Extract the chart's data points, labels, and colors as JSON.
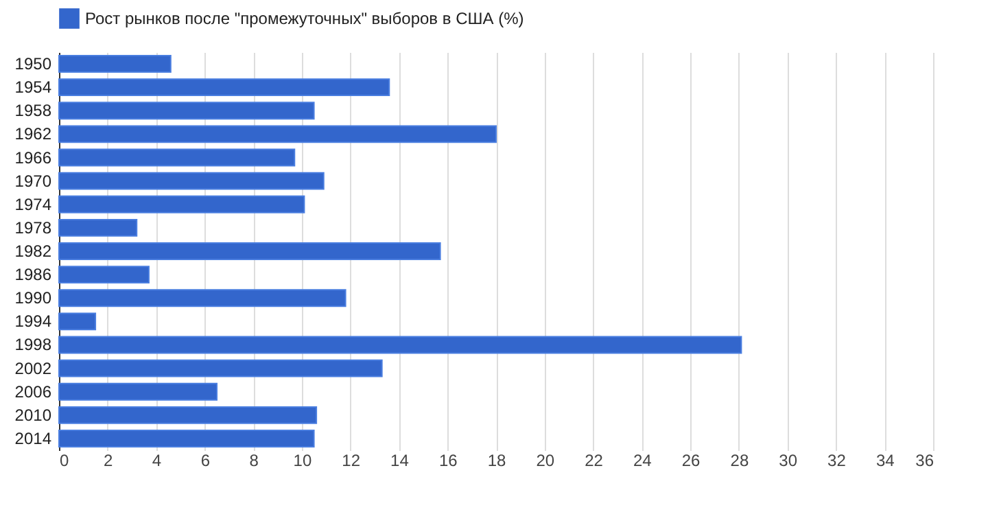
{
  "chart_data": {
    "type": "bar",
    "orientation": "horizontal",
    "categories": [
      "1950",
      "1954",
      "1958",
      "1962",
      "1966",
      "1970",
      "1974",
      "1978",
      "1982",
      "1986",
      "1990",
      "1994",
      "1998",
      "2002",
      "2006",
      "2010",
      "2014"
    ],
    "series": [
      {
        "name": "Рост рынков после \"промежуточных\" выборов в США (%)",
        "color": "#3366cc",
        "values": [
          4.6,
          13.6,
          10.5,
          18.0,
          9.7,
          10.9,
          10.1,
          3.2,
          15.7,
          3.7,
          11.8,
          1.5,
          28.1,
          13.3,
          6.5,
          10.6,
          10.5
        ]
      }
    ],
    "xlim": [
      0,
      36
    ],
    "xticks": [
      0,
      2,
      4,
      6,
      8,
      10,
      12,
      14,
      16,
      18,
      20,
      22,
      24,
      26,
      28,
      30,
      32,
      34,
      36
    ],
    "grid": "x",
    "legend": "top left"
  }
}
